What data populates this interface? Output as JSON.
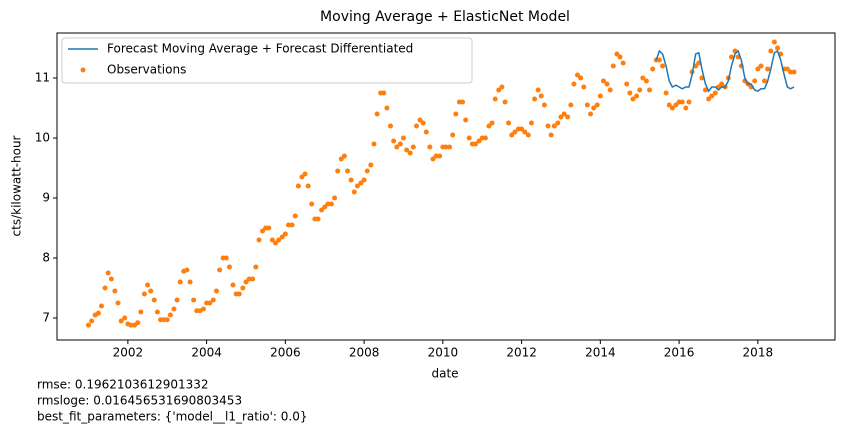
{
  "chart_data": {
    "type": "line",
    "title": "Moving Average + ElasticNet Model",
    "xlabel": "date",
    "ylabel": "cts/kilowatt-hour",
    "xlim": [
      2000.2,
      2019.96
    ],
    "xticks": [
      2002,
      2004,
      2006,
      2008,
      2010,
      2012,
      2014,
      2016,
      2018
    ],
    "ylim": [
      6.633,
      11.75
    ],
    "yticks": [
      7,
      8,
      9,
      10,
      11
    ],
    "legend": "upper left",
    "grid": false,
    "series": [
      {
        "name": "Forecast Moving Average + Forecast Differentiated",
        "style": "line",
        "color": "#1f77b4",
        "x": [
          2015.42,
          2015.5,
          2015.58,
          2015.67,
          2015.75,
          2015.83,
          2015.92,
          2016.0,
          2016.08,
          2016.17,
          2016.25,
          2016.33,
          2016.42,
          2016.5,
          2016.58,
          2016.67,
          2016.75,
          2016.83,
          2016.92,
          2017.0,
          2017.08,
          2017.17,
          2017.25,
          2017.33,
          2017.42,
          2017.5,
          2017.58,
          2017.67,
          2017.75,
          2017.83,
          2017.92,
          2018.0,
          2018.08,
          2018.17,
          2018.25,
          2018.33,
          2018.42,
          2018.5,
          2018.58,
          2018.67,
          2018.75,
          2018.83,
          2018.92
        ],
        "values": [
          11.3,
          11.45,
          11.4,
          11.2,
          10.95,
          10.85,
          10.88,
          10.85,
          10.82,
          10.85,
          10.85,
          11.05,
          11.4,
          11.42,
          11.15,
          10.9,
          10.78,
          10.85,
          10.85,
          10.8,
          10.85,
          10.85,
          10.95,
          11.2,
          11.4,
          11.45,
          11.3,
          11.0,
          10.9,
          10.9,
          10.8,
          10.78,
          10.82,
          10.82,
          10.95,
          11.15,
          11.42,
          11.45,
          11.3,
          11.05,
          10.85,
          10.82,
          10.85
        ]
      },
      {
        "name": "Observations",
        "style": "scatter",
        "color": "#ff7f0e",
        "x": [
          2001.0,
          2001.08,
          2001.17,
          2001.25,
          2001.33,
          2001.42,
          2001.5,
          2001.58,
          2001.67,
          2001.75,
          2001.83,
          2001.92,
          2002.0,
          2002.08,
          2002.17,
          2002.25,
          2002.33,
          2002.42,
          2002.5,
          2002.58,
          2002.67,
          2002.75,
          2002.83,
          2002.92,
          2003.0,
          2003.08,
          2003.17,
          2003.25,
          2003.33,
          2003.42,
          2003.5,
          2003.58,
          2003.67,
          2003.75,
          2003.83,
          2003.92,
          2004.0,
          2004.08,
          2004.17,
          2004.25,
          2004.33,
          2004.42,
          2004.5,
          2004.58,
          2004.67,
          2004.75,
          2004.83,
          2004.92,
          2005.0,
          2005.08,
          2005.17,
          2005.25,
          2005.33,
          2005.42,
          2005.5,
          2005.58,
          2005.67,
          2005.75,
          2005.83,
          2005.92,
          2006.0,
          2006.08,
          2006.17,
          2006.25,
          2006.33,
          2006.42,
          2006.5,
          2006.58,
          2006.67,
          2006.75,
          2006.83,
          2006.92,
          2007.0,
          2007.08,
          2007.17,
          2007.25,
          2007.33,
          2007.42,
          2007.5,
          2007.58,
          2007.67,
          2007.75,
          2007.83,
          2007.92,
          2008.0,
          2008.08,
          2008.17,
          2008.25,
          2008.33,
          2008.42,
          2008.5,
          2008.58,
          2008.67,
          2008.75,
          2008.83,
          2008.92,
          2009.0,
          2009.08,
          2009.17,
          2009.25,
          2009.33,
          2009.42,
          2009.5,
          2009.58,
          2009.67,
          2009.75,
          2009.83,
          2009.92,
          2010.0,
          2010.08,
          2010.17,
          2010.25,
          2010.33,
          2010.42,
          2010.5,
          2010.58,
          2010.67,
          2010.75,
          2010.83,
          2010.92,
          2011.0,
          2011.08,
          2011.17,
          2011.25,
          2011.33,
          2011.42,
          2011.5,
          2011.58,
          2011.67,
          2011.75,
          2011.83,
          2011.92,
          2012.0,
          2012.08,
          2012.17,
          2012.25,
          2012.33,
          2012.42,
          2012.5,
          2012.58,
          2012.67,
          2012.75,
          2012.83,
          2012.92,
          2013.0,
          2013.08,
          2013.17,
          2013.25,
          2013.33,
          2013.42,
          2013.5,
          2013.58,
          2013.67,
          2013.75,
          2013.83,
          2013.92,
          2014.0,
          2014.08,
          2014.17,
          2014.25,
          2014.33,
          2014.42,
          2014.5,
          2014.58,
          2014.67,
          2014.75,
          2014.83,
          2014.92,
          2015.0,
          2015.08,
          2015.17,
          2015.25,
          2015.33,
          2015.42,
          2015.5,
          2015.58,
          2015.67,
          2015.75,
          2015.83,
          2015.92,
          2016.0,
          2016.08,
          2016.17,
          2016.25,
          2016.33,
          2016.42,
          2016.5,
          2016.58,
          2016.67,
          2016.75,
          2016.83,
          2016.92,
          2017.0,
          2017.08,
          2017.17,
          2017.25,
          2017.33,
          2017.42,
          2017.5,
          2017.58,
          2017.67,
          2017.75,
          2017.83,
          2017.92,
          2018.0,
          2018.08,
          2018.17,
          2018.25,
          2018.33,
          2018.42,
          2018.5,
          2018.58,
          2018.67,
          2018.75,
          2018.83,
          2018.92
        ],
        "values": [
          6.88,
          6.95,
          7.05,
          7.08,
          7.2,
          7.5,
          7.75,
          7.65,
          7.45,
          7.25,
          6.95,
          7.0,
          6.9,
          6.88,
          6.88,
          6.92,
          7.1,
          7.4,
          7.55,
          7.45,
          7.3,
          7.1,
          6.97,
          6.97,
          6.97,
          7.05,
          7.15,
          7.3,
          7.6,
          7.78,
          7.8,
          7.6,
          7.3,
          7.12,
          7.12,
          7.15,
          7.25,
          7.25,
          7.3,
          7.45,
          7.8,
          8.0,
          8.0,
          7.85,
          7.55,
          7.4,
          7.4,
          7.5,
          7.6,
          7.65,
          7.65,
          7.85,
          8.3,
          8.45,
          8.5,
          8.5,
          8.3,
          8.25,
          8.3,
          8.35,
          8.4,
          8.55,
          8.55,
          8.7,
          9.2,
          9.35,
          9.4,
          9.2,
          8.9,
          8.65,
          8.65,
          8.8,
          8.85,
          8.9,
          8.9,
          9.0,
          9.45,
          9.65,
          9.7,
          9.45,
          9.3,
          9.1,
          9.2,
          9.25,
          9.3,
          9.45,
          9.55,
          9.9,
          10.4,
          10.75,
          10.75,
          10.5,
          10.2,
          9.95,
          9.85,
          9.9,
          10.0,
          9.8,
          9.75,
          9.85,
          10.2,
          10.3,
          10.25,
          10.1,
          9.85,
          9.65,
          9.7,
          9.7,
          9.85,
          9.85,
          9.85,
          10.05,
          10.4,
          10.6,
          10.6,
          10.3,
          10.0,
          9.9,
          9.9,
          9.95,
          10.0,
          10.0,
          10.2,
          10.25,
          10.65,
          10.8,
          10.85,
          10.6,
          10.25,
          10.05,
          10.1,
          10.15,
          10.15,
          10.1,
          10.05,
          10.25,
          10.65,
          10.8,
          10.7,
          10.55,
          10.2,
          10.05,
          10.2,
          10.25,
          10.35,
          10.4,
          10.35,
          10.55,
          10.9,
          11.05,
          11.0,
          10.85,
          10.55,
          10.4,
          10.5,
          10.55,
          10.7,
          10.95,
          10.9,
          10.8,
          11.2,
          11.4,
          11.35,
          11.25,
          10.9,
          10.75,
          10.65,
          10.7,
          10.8,
          11.0,
          10.95,
          10.8,
          11.15,
          11.3,
          11.3,
          11.2,
          10.75,
          10.55,
          10.5,
          10.55,
          10.6,
          10.6,
          10.5,
          10.6,
          11.1,
          11.2,
          11.25,
          11.0,
          10.8,
          10.65,
          10.7,
          10.75,
          10.85,
          10.9,
          10.85,
          11.0,
          11.35,
          11.45,
          11.35,
          11.2,
          10.95,
          10.9,
          10.85,
          10.95,
          11.15,
          11.2,
          10.95,
          11.15,
          11.45,
          11.6,
          11.5,
          11.4,
          11.15,
          11.15,
          11.1,
          11.1
        ]
      }
    ],
    "annotations": [
      "rmse: 0.1962103612901332",
      "rmsloge: 0.016456531690803453",
      "best_fit_parameters: {'model__l1_ratio': 0.0}"
    ]
  }
}
